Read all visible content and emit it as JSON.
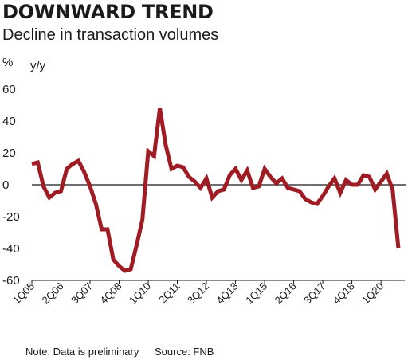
{
  "header": {
    "title": "DOWNWARD TREND",
    "subtitle": "Decline in transaction volumes"
  },
  "footer": {
    "note": "Note: Data is preliminary",
    "source": "Source: FNB"
  },
  "chart_data": {
    "type": "line",
    "y_unit_top": "%",
    "y_unit_sub": "y/y",
    "ylim": [
      -60,
      60
    ],
    "yticks": [
      60,
      40,
      20,
      0,
      -20,
      -40,
      -60
    ],
    "grid": false,
    "zero_line": true,
    "line_color": "#a01c24",
    "x_tick_labels": [
      "1Q05",
      "2Q06",
      "3Q07",
      "4Q08",
      "1Q10",
      "2Q11",
      "3Q12",
      "4Q13",
      "1Q15",
      "2Q16",
      "3Q17",
      "4Q18",
      "1Q20"
    ],
    "series": [
      {
        "values": [
          13,
          14,
          -1,
          -8,
          -5,
          -4,
          10,
          13,
          15,
          8,
          -1,
          -12,
          -28,
          -28,
          -47,
          -51,
          -54,
          -53,
          -38,
          -22,
          21,
          18,
          48,
          25,
          10,
          12,
          11,
          5,
          2,
          -2,
          4,
          -8,
          -4,
          -3,
          6,
          10,
          3,
          9,
          -2,
          -1,
          10,
          5,
          1,
          4,
          -2,
          -3,
          -4,
          -9,
          -11,
          -12,
          -7,
          -1,
          4,
          -5,
          3,
          0,
          0,
          6,
          5,
          -3,
          2,
          7,
          -3,
          -40
        ]
      }
    ]
  }
}
